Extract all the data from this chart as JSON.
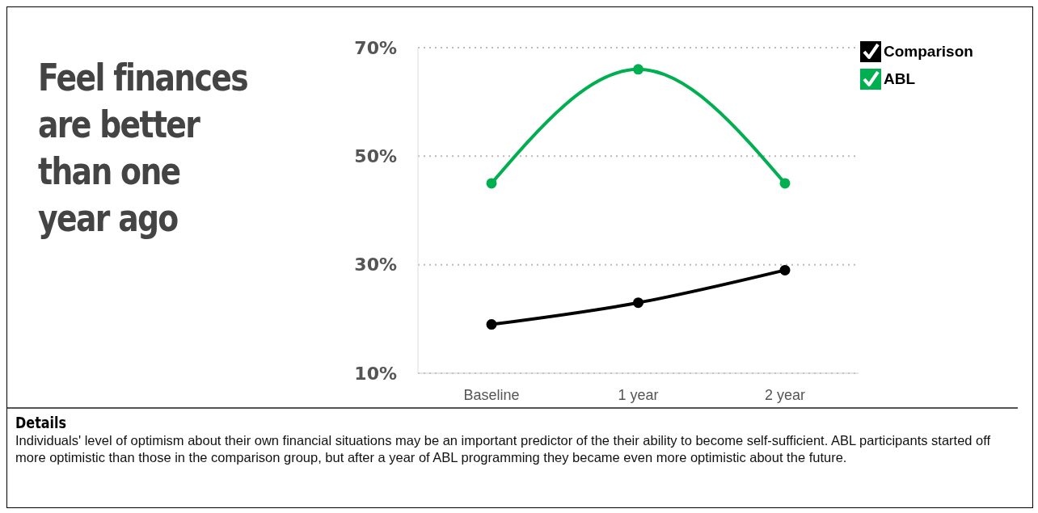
{
  "chart_data": {
    "type": "line",
    "title": "Feel finances are better than one year ago",
    "categories": [
      "Baseline",
      "1 year",
      "2 year"
    ],
    "series": [
      {
        "name": "Comparison",
        "color": "#000000",
        "values": [
          19,
          23,
          29
        ]
      },
      {
        "name": "ABL",
        "color": "#00b050",
        "values": [
          45,
          66,
          45
        ]
      }
    ],
    "ylim": [
      10,
      70
    ],
    "yticks": [
      {
        "value": 10,
        "label": "10%"
      },
      {
        "value": 30,
        "label": "30%"
      },
      {
        "value": 50,
        "label": "50%"
      },
      {
        "value": 70,
        "label": "70%"
      }
    ],
    "grid": "y",
    "legend": "top right",
    "marker": "circle",
    "line_style": "solid",
    "annotations": [
      "Details",
      "Individuals' level of optimism about their own financial situations may be an important predictor of the their ability to become self-sufficient.  ABL participants started off more optimistic than those in the comparison group, but after a year of ABL programming they became even more optimistic about the future."
    ]
  }
}
